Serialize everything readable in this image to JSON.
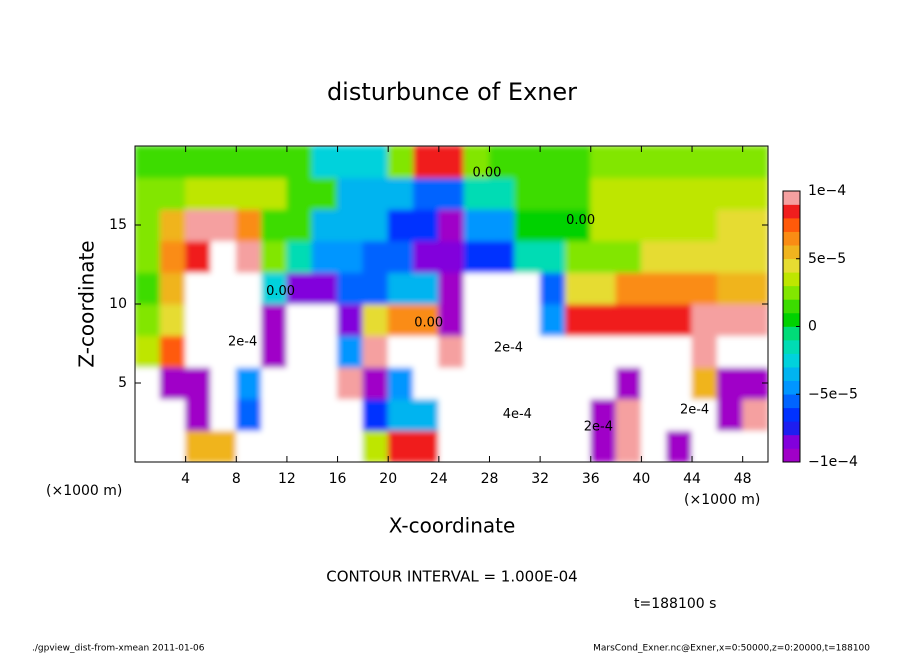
{
  "chart_data": {
    "type": "contour",
    "title": "disturbunce of Exner",
    "xlabel": "X-coordinate",
    "ylabel": "Z-coordinate",
    "x_unit": "(×1000 m)",
    "contour_interval": "CONTOUR INTERVAL = 1.000E-04",
    "time_label": "t=188100 s",
    "footer_left": "./gpview_dist-from-xmean  2011-01-06",
    "footer_right": "MarsCond_Exner.nc@Exner,x=0:50000,z=0:20000,t=188100",
    "xlim": [
      0,
      50
    ],
    "ylim": [
      0,
      20
    ],
    "xticks": [
      4,
      8,
      12,
      16,
      20,
      24,
      28,
      32,
      36,
      40,
      44,
      48
    ],
    "yticks": [
      5,
      10,
      15
    ],
    "xbins": [
      0,
      2,
      4,
      6,
      8,
      10,
      12,
      14,
      16,
      18,
      20,
      22,
      24,
      26,
      28,
      30,
      32,
      34,
      36,
      38,
      40,
      42,
      44,
      46,
      48,
      50
    ],
    "zbins": [
      0,
      2,
      4,
      6,
      8,
      10,
      12,
      14,
      16,
      18,
      20
    ],
    "values": [
      [
        0.0002,
        0.0002,
        5e-05,
        5e-05,
        0.0002,
        0.0002,
        0.0002,
        0.0002,
        -0.0002,
        3e-05,
        8e-05,
        8e-05,
        0.0002,
        -0.0002,
        -0.0002,
        -0.0002,
        0.0002,
        0.0002,
        -9e-05,
        9e-05,
        0.0002,
        -9e-05,
        0.0002,
        -0.0002,
        -0.0002
      ],
      [
        0.0002,
        0.0002,
        -9e-05,
        0.0002,
        -6e-05,
        0.0002,
        0.0002,
        0.0002,
        0.0002,
        -7e-05,
        -4e-05,
        -4e-05,
        0.0002,
        -0.0002,
        -0.0002,
        -0.0002,
        0.0002,
        0.0002,
        -9e-05,
        9e-05,
        0.0002,
        0.0002,
        -0.0002,
        -9e-05,
        9e-05
      ],
      [
        0.0002,
        -9e-05,
        -9e-05,
        0.0002,
        -5e-05,
        0.0002,
        0.0002,
        0.0002,
        9e-05,
        -9e-05,
        -5e-05,
        0.0002,
        -0.0002,
        -0.0002,
        -0.0002,
        -0.0002,
        0.0002,
        0.0002,
        0.0002,
        -9e-05,
        0.0002,
        0.0002,
        5e-05,
        -9e-05,
        -9e-05
      ],
      [
        3e-05,
        7e-05,
        0.0002,
        0.0002,
        0.0002,
        -9e-05,
        0.0002,
        0.0002,
        -5e-05,
        9e-05,
        0.0002,
        0.0002,
        9e-05,
        -0.0002,
        -0.0002,
        -0.0002,
        0.0002,
        0.0002,
        0.0002,
        0.0002,
        0.0002,
        0.0002,
        9e-05,
        0.0002,
        0.0002
      ],
      [
        2e-05,
        4e-05,
        0.0002,
        0.0002,
        0.0002,
        -9e-05,
        0.0002,
        0.0002,
        -8e-05,
        4e-05,
        6e-05,
        6e-05,
        -9e-05,
        -0.0002,
        -0.0002,
        -0.0002,
        -5e-05,
        8e-05,
        8e-05,
        8e-05,
        8e-05,
        8e-05,
        9e-05,
        9e-05,
        9e-05
      ],
      [
        1e-05,
        5e-05,
        0.0002,
        0.0002,
        0.0002,
        -3e-05,
        -8e-05,
        -8e-05,
        -6e-05,
        -6e-05,
        -4e-05,
        -4e-05,
        -9e-05,
        -0.0002,
        -0.0002,
        -0.0002,
        -6e-05,
        4e-05,
        4e-05,
        6e-05,
        6e-05,
        6e-05,
        6e-05,
        5e-05,
        5e-05
      ],
      [
        2e-05,
        6e-05,
        8e-05,
        0.00012,
        9e-05,
        2e-05,
        -2e-05,
        -5e-05,
        -5e-05,
        -6e-05,
        -6e-05,
        -8e-05,
        -8e-05,
        -7e-05,
        -7e-05,
        -2e-05,
        -2e-05,
        2e-05,
        2e-05,
        2e-05,
        4e-05,
        4e-05,
        4e-05,
        4e-05,
        4e-05
      ],
      [
        2e-05,
        5e-05,
        9e-05,
        9e-05,
        6e-05,
        1e-05,
        1e-05,
        -4e-05,
        -4e-05,
        -4e-05,
        -7e-05,
        -7e-05,
        -9e-05,
        -5e-05,
        -5e-05,
        0,
        0,
        0,
        3e-05,
        3e-05,
        3e-05,
        3e-05,
        3e-05,
        4e-05,
        4e-05
      ],
      [
        2e-05,
        2e-05,
        3e-05,
        3e-05,
        3e-05,
        3e-05,
        1e-05,
        1e-05,
        -4e-05,
        -4e-05,
        -4e-05,
        -6e-05,
        -6e-05,
        -2e-05,
        -2e-05,
        1e-05,
        1e-05,
        1e-05,
        3e-05,
        3e-05,
        3e-05,
        3e-05,
        3e-05,
        3e-05,
        3e-05
      ],
      [
        1e-05,
        1e-05,
        1e-05,
        1e-05,
        1e-05,
        1e-05,
        1e-05,
        -3e-05,
        -3e-05,
        -3e-05,
        2e-05,
        8e-05,
        8e-05,
        2e-05,
        1e-05,
        1e-05,
        1e-05,
        1e-05,
        2e-05,
        2e-05,
        2e-05,
        2e-05,
        2e-05,
        2e-05,
        2e-05
      ]
    ],
    "colorbar": {
      "lim": [
        -0.0001,
        0.0001
      ],
      "ticks": [
        {
          "value": -0.0001,
          "label": "−1e−4"
        },
        {
          "value": -5e-05,
          "label": "−5e−5"
        },
        0,
        {
          "value": 5e-05,
          "label": "5e−5"
        },
        {
          "value": 0.0001,
          "label": "1e−4"
        }
      ],
      "colors": [
        "#a000c8",
        "#8200dc",
        "#1e1ef0",
        "#0032ff",
        "#0064ff",
        "#0096ff",
        "#00b4f0",
        "#00d2dc",
        "#00dcb4",
        "#00dc78",
        "#00d200",
        "#3cdc00",
        "#82e600",
        "#bee600",
        "#e6dc32",
        "#f0b41e",
        "#fa8c14",
        "#ff5a0a",
        "#f01e1e",
        "#f5a0a0"
      ],
      "out_of_range_color": "#ffffff"
    },
    "annotations": [
      {
        "text": "0.00",
        "x": 11.5,
        "y": 10.8
      },
      {
        "text": "0.00",
        "x": 23.2,
        "y": 8.8
      },
      {
        "text": "0.00",
        "x": 27.8,
        "y": 18.3
      },
      {
        "text": "0.00",
        "x": 35.2,
        "y": 15.3
      },
      {
        "text": "2e-4",
        "x": 8.5,
        "y": 7.6
      },
      {
        "text": "2e-4",
        "x": 29.5,
        "y": 7.2
      },
      {
        "text": "4e-4",
        "x": 30.2,
        "y": 3.0
      },
      {
        "text": "2e-4",
        "x": 36.6,
        "y": 2.2
      },
      {
        "text": "2e-4",
        "x": 44.2,
        "y": 3.3
      }
    ]
  }
}
